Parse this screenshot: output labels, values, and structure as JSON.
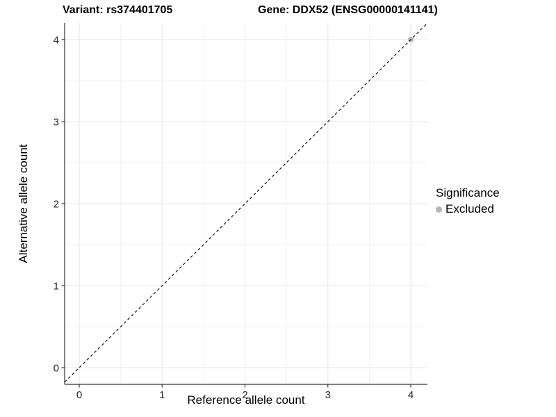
{
  "chart_data": {
    "type": "scatter",
    "titles": {
      "left": "Variant: rs374401705",
      "right": "Gene: DDX52 (ENSG00000141141)"
    },
    "xlabel": "Reference allele count",
    "ylabel": "Alternative allele count",
    "x_ticks": [
      0,
      1,
      2,
      3,
      4
    ],
    "y_ticks": [
      0,
      1,
      2,
      3,
      4
    ],
    "xlim": [
      -0.176,
      4.201
    ],
    "ylim": [
      -0.203,
      4.203
    ],
    "grid": {
      "major": true,
      "minor": true,
      "major_color": "#e5e5e5",
      "minor_color": "#f2f2f2"
    },
    "reference_line": {
      "type": "abline",
      "slope": 1,
      "intercept": 0,
      "style": "dashed",
      "color": "#000000"
    },
    "series": [
      {
        "name": "Excluded",
        "marker": "circle",
        "color": "#b5b5b5",
        "points": [
          {
            "x": 4,
            "y": 4
          }
        ]
      }
    ],
    "legend": {
      "title": "Significance",
      "position": "right",
      "items": [
        {
          "label": "Excluded",
          "color": "#b5b5b5",
          "marker": "circle"
        }
      ]
    },
    "axis": {
      "line_color": "#333333",
      "tick_color": "#333333",
      "tick_label_color": "#262626"
    }
  }
}
